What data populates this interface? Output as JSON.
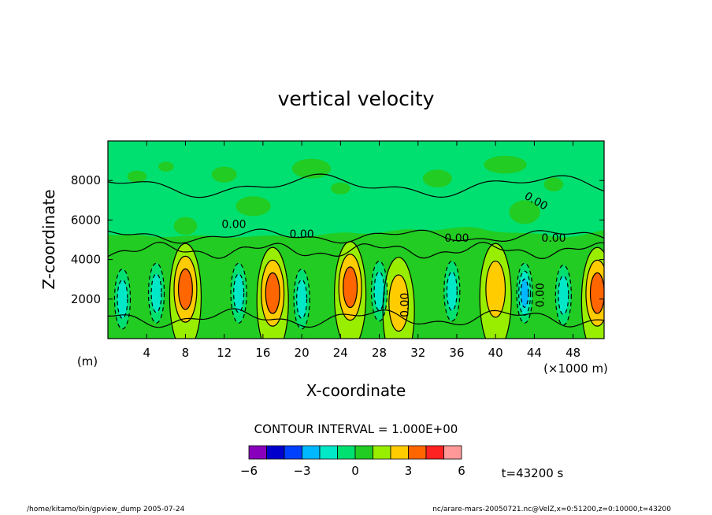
{
  "chart_data": {
    "type": "contour",
    "title": "vertical velocity",
    "xlabel": "X-coordinate",
    "ylabel": "Z-coordinate",
    "x_unit": "(×1000 m)",
    "y_unit": "(m)",
    "xlim": [
      0,
      51.2
    ],
    "ylim": [
      0,
      10000
    ],
    "x_ticks": [
      "4",
      "8",
      "12",
      "16",
      "20",
      "24",
      "28",
      "32",
      "36",
      "40",
      "44",
      "48"
    ],
    "y_ticks": [
      "2000",
      "4000",
      "6000",
      "8000"
    ],
    "contour_labels": [
      "0.00",
      "0.00",
      "0.00",
      "0.00",
      "0.00",
      "0.00",
      "0.00"
    ],
    "contour_interval_label": "CONTOUR INTERVAL = 1.000E+00",
    "colorbar": {
      "ticks": [
        "−6",
        "−3",
        "0",
        "3",
        "6"
      ],
      "colors": [
        "#8800bb",
        "#0000cc",
        "#0040ff",
        "#00b8ff",
        "#00e8c8",
        "#00e070",
        "#22cc22",
        "#99ee00",
        "#ffcc00",
        "#ff6600",
        "#ff2222",
        "#ff9999"
      ]
    },
    "time_label": "t=43200 s",
    "updrafts": [
      {
        "x": 8,
        "z": 2500,
        "max": 2.6
      },
      {
        "x": 17,
        "z": 2300,
        "max": 2.2
      },
      {
        "x": 25,
        "z": 2600,
        "max": 2.4
      },
      {
        "x": 30,
        "z": 1800,
        "max": 1.2
      },
      {
        "x": 40,
        "z": 2500,
        "max": 1.5
      },
      {
        "x": 50.5,
        "z": 2300,
        "max": 2.1
      }
    ],
    "downdrafts": [
      {
        "x": 1.5,
        "z": 2000,
        "min": -1.5
      },
      {
        "x": 5,
        "z": 2300,
        "min": -1.3
      },
      {
        "x": 13.5,
        "z": 2300,
        "min": -1.4
      },
      {
        "x": 20,
        "z": 2000,
        "min": -1.6
      },
      {
        "x": 28,
        "z": 2400,
        "min": -1.4
      },
      {
        "x": 35.5,
        "z": 2400,
        "min": -1.6
      },
      {
        "x": 43,
        "z": 2300,
        "min": -2.2
      },
      {
        "x": 47,
        "z": 2200,
        "min": -1.3
      }
    ]
  },
  "footer": {
    "left": "/home/kitamo/bin/gpview_dump  2005-07-24",
    "right": "nc/arare-mars-20050721.nc@VelZ,x=0:51200,z=0:10000,t=43200"
  }
}
